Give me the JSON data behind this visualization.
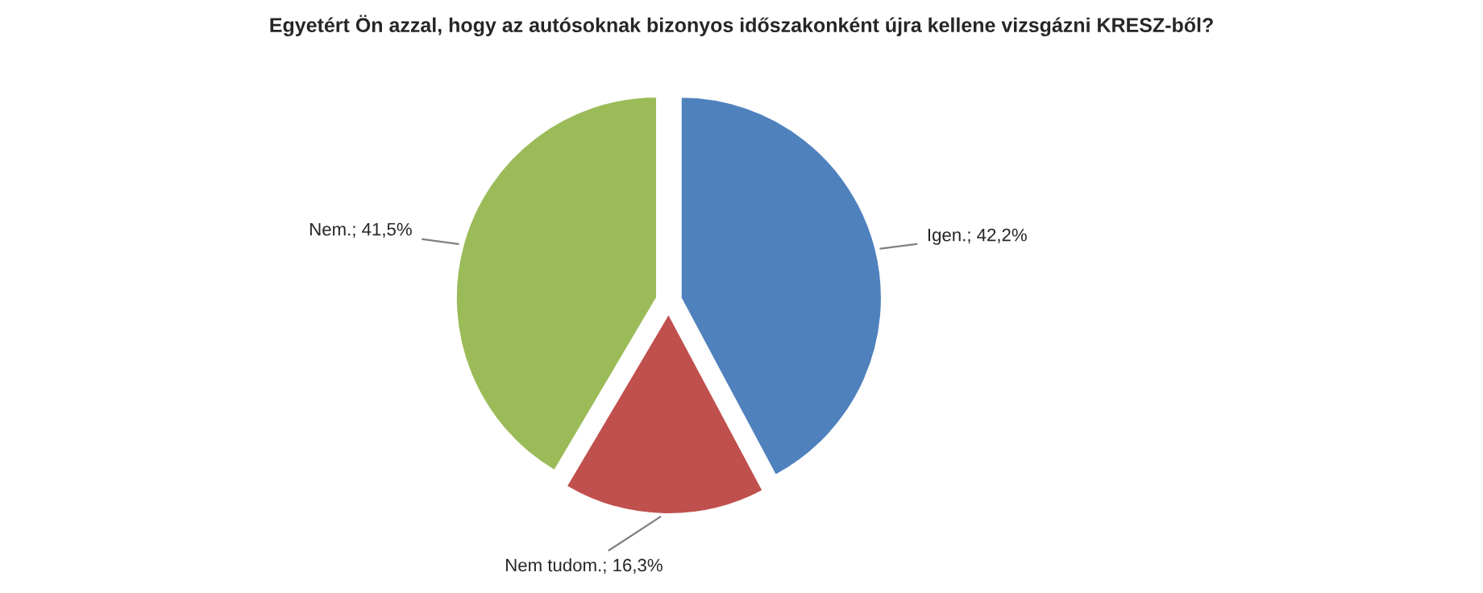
{
  "chart_data": {
    "type": "pie",
    "title": "Egyetért Ön azzal, hogy az autósoknak bizonyos időszakonként újra kellene vizsgázni KRESZ-ből?",
    "categories": [
      "Igen.",
      "Nem tudom.",
      "Nem."
    ],
    "values": [
      42.2,
      16.3,
      41.5
    ],
    "value_labels": [
      "42,2%",
      "16,3%",
      "41,5%"
    ],
    "colors": [
      "#4f81bd",
      "#c0504d",
      "#9bbb59"
    ]
  }
}
